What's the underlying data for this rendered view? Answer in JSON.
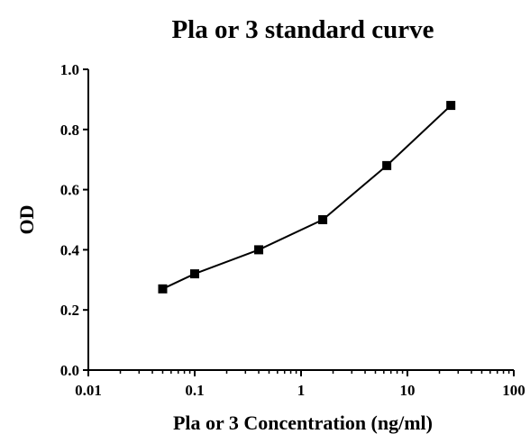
{
  "chart_data": {
    "type": "line",
    "title": "Pla or 3 standard curve",
    "xlabel": "Pla or 3 Concentration (ng/ml)",
    "ylabel": "OD",
    "x_scale": "log",
    "xlim": [
      0.01,
      100
    ],
    "ylim": [
      0,
      1.0
    ],
    "x_ticks": [
      "0.01",
      "0.1",
      "1",
      "10",
      "100"
    ],
    "y_ticks": [
      "0.0",
      "0.2",
      "0.4",
      "0.6",
      "0.8",
      "1.0"
    ],
    "grid": false,
    "marker": "square",
    "series": [
      {
        "x": [
          0.05,
          0.1,
          0.4,
          1.6,
          6.4,
          25.6
        ],
        "y": [
          0.27,
          0.32,
          0.4,
          0.5,
          0.68,
          0.88
        ]
      }
    ]
  }
}
